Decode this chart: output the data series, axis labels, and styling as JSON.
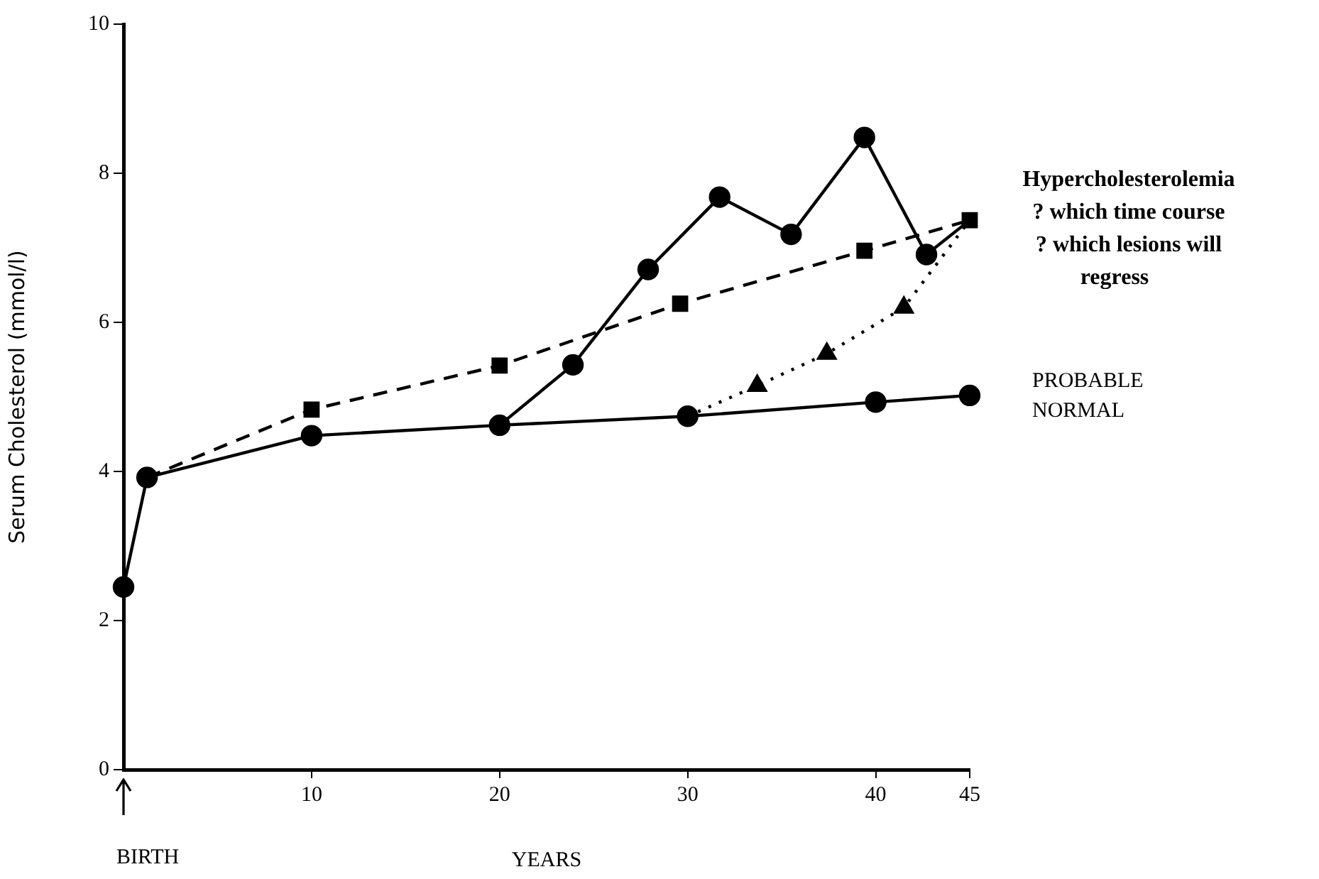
{
  "chart_data": {
    "type": "line",
    "ylabel": "Serum Cholesterol (mmol/l)",
    "xlabel": "YEARS",
    "xlim": [
      0,
      45
    ],
    "xticks": [
      10,
      20,
      30,
      40,
      45
    ],
    "ylim": [
      0,
      10
    ],
    "yticks": [
      0,
      2,
      4,
      6,
      8,
      10
    ],
    "grid": false,
    "legend": false,
    "series": [
      {
        "name": "PROBABLE NORMAL",
        "color": "#000000",
        "marker": "circle",
        "line_style": "solid",
        "x": [
          0,
          1.25,
          10,
          20,
          30,
          40,
          45
        ],
        "values": [
          2.45,
          3.92,
          4.48,
          4.62,
          4.74,
          4.93,
          5.02
        ]
      },
      {
        "color": "#000000",
        "marker": "square",
        "line_style": "dashed",
        "x": [
          1.25,
          10,
          20,
          29.6,
          39.4,
          45
        ],
        "values": [
          3.92,
          4.83,
          5.42,
          6.25,
          6.96,
          7.37
        ]
      },
      {
        "color": "#000000",
        "marker": "circle",
        "line_style": "solid",
        "x": [
          20,
          23.9,
          27.9,
          31.7,
          35.5,
          39.4,
          42.7,
          45
        ],
        "values": [
          4.62,
          5.43,
          6.71,
          7.68,
          7.18,
          8.48,
          6.91,
          7.37
        ]
      },
      {
        "color": "#000000",
        "marker": "triangle",
        "line_style": "dotted",
        "x": [
          30,
          33.7,
          37.4,
          41.5,
          45
        ],
        "values": [
          4.74,
          5.15,
          5.58,
          6.2,
          7.37
        ]
      }
    ],
    "annotations": [
      "Hypercholesterolemia\n? which time course\n? which lesions will\nregress",
      "BIRTH"
    ]
  }
}
